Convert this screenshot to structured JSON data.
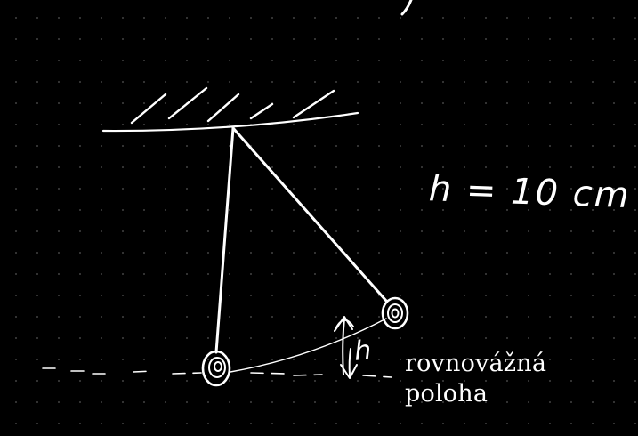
{
  "handwritten_note": "h = 10 cm",
  "height_symbol": "h",
  "equilibrium_label": {
    "line1": "rovnovážná",
    "line2": "poloha"
  },
  "colors": {
    "background": "#000000",
    "ink": "#ffffff",
    "grid_dots": "#3a3a3a"
  }
}
